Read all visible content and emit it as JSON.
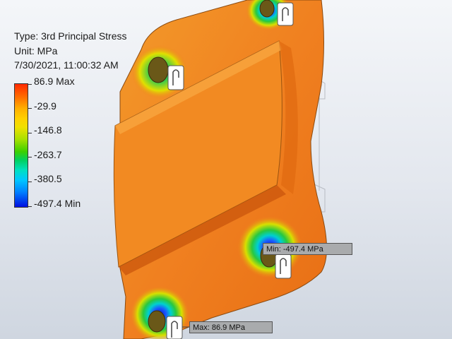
{
  "legend": {
    "type_line": "Type: 3rd Principal Stress",
    "unit_line": "Unit: MPa",
    "date_line": "7/30/2021, 11:00:32 AM",
    "scale_labels": [
      "86.9 Max",
      "-29.9",
      "-146.8",
      "-263.7",
      "-380.5",
      "-497.4 Min"
    ]
  },
  "probes": {
    "min_label": "Min: -497.4 MPa",
    "max_label": "Max: 86.9 MPa"
  },
  "colors": {
    "background_top": "#f4f6f9",
    "model_main": "#f07f1c",
    "model_shadow": "#d8630f",
    "hotspot_outer": "#ffd000",
    "hotspot_mid": "#2dc84a",
    "hotspot_inner": "#1030e0"
  }
}
